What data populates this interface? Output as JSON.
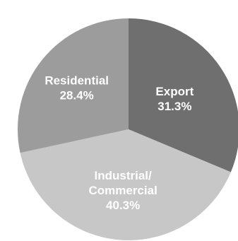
{
  "chart_data": {
    "type": "pie",
    "slices": [
      {
        "label": "Export",
        "label_lines": [
          "Export"
        ],
        "percent_label": "31.3%",
        "value": 31.3,
        "color": "#6f6f6f"
      },
      {
        "label": "Industrial/ Commercial",
        "label_lines": [
          "Industrial/",
          "Commercial"
        ],
        "percent_label": "40.3%",
        "value": 40.3,
        "color": "#c7c7c7"
      },
      {
        "label": "Residential",
        "label_lines": [
          "Residential"
        ],
        "percent_label": "28.4%",
        "value": 28.4,
        "color": "#9c9c9c"
      }
    ],
    "legend": "none"
  }
}
